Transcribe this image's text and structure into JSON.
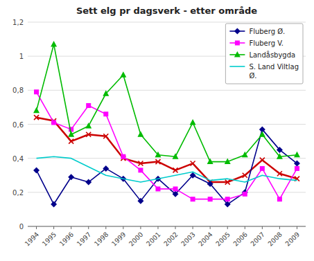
{
  "chart_data": {
    "type": "line",
    "title": "Sett elg pr dagsverk - etter område",
    "x": [
      1994,
      1995,
      1996,
      1997,
      1998,
      1999,
      2000,
      2001,
      2002,
      2003,
      2004,
      2005,
      2006,
      2007,
      2008,
      2009
    ],
    "xlim": [
      1993.5,
      2009.5
    ],
    "xticks": [
      1994,
      1995,
      1996,
      1997,
      1998,
      1999,
      2000,
      2001,
      2002,
      2003,
      2004,
      2005,
      2006,
      2007,
      2008,
      2009
    ],
    "ylim": [
      0,
      1.2
    ],
    "yticks": [
      0,
      {
        "value": 0.2,
        "label": "0,2"
      },
      {
        "value": 0.4,
        "label": "0,4"
      },
      {
        "value": 0.6,
        "label": "0,6"
      },
      {
        "value": 0.8,
        "label": "0,8"
      },
      1,
      {
        "value": 1.2,
        "label": "1,2"
      }
    ],
    "grid": true,
    "legend": "upper right",
    "series": [
      {
        "color": "#CC0000",
        "marker": "x",
        "values": [
          0.64,
          0.62,
          0.5,
          0.54,
          0.53,
          0.4,
          0.37,
          0.38,
          0.33,
          0.37,
          0.26,
          0.26,
          0.3,
          0.39,
          0.31,
          0.28
        ]
      },
      {
        "name": "Fluberg Ø.",
        "color": "#00008B",
        "marker": "diamond",
        "values": [
          0.33,
          0.13,
          0.29,
          0.26,
          0.34,
          0.28,
          0.15,
          0.28,
          0.19,
          0.3,
          0.25,
          0.13,
          0.2,
          0.57,
          0.45,
          0.37
        ]
      },
      {
        "name": "Fluberg V.",
        "color": "#FF00FF",
        "marker": "square",
        "values": [
          0.79,
          0.61,
          0.57,
          0.71,
          0.66,
          0.41,
          0.33,
          0.22,
          0.22,
          0.16,
          0.16,
          0.16,
          0.19,
          0.34,
          0.16,
          0.34
        ]
      },
      {
        "name": "Landåsbygda",
        "color": "#00BB00",
        "marker": "triangle",
        "values": [
          0.68,
          1.07,
          0.54,
          0.59,
          0.78,
          0.89,
          0.54,
          0.42,
          0.41,
          0.61,
          0.38,
          0.38,
          0.42,
          0.54,
          0.41,
          0.42
        ]
      },
      {
        "name": "S. Land Viltlag\nØ.",
        "color": "#00CCCC",
        "marker": "none",
        "values": [
          0.4,
          0.41,
          0.4,
          0.35,
          0.3,
          0.28,
          0.26,
          0.28,
          0.3,
          0.32,
          0.27,
          0.28,
          0.26,
          0.3,
          0.28,
          0.27
        ]
      }
    ]
  }
}
